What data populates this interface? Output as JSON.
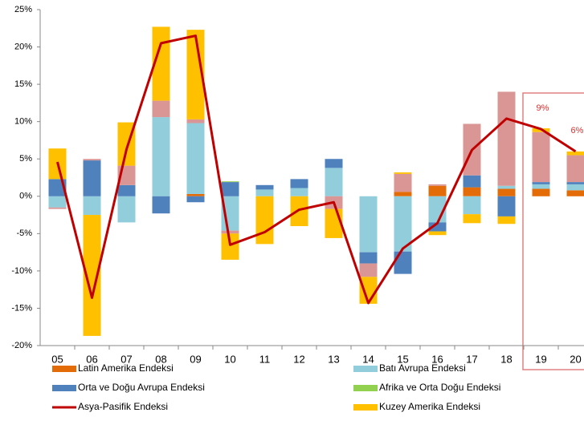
{
  "chart_data": {
    "type": "bar",
    "categories": [
      "05",
      "06",
      "07",
      "08",
      "09",
      "10",
      "11",
      "12",
      "13",
      "14",
      "15",
      "16",
      "17",
      "18",
      "19",
      "20"
    ],
    "stacked": true,
    "ylim": [
      -20,
      25
    ],
    "yticks": [
      {
        "value": -20,
        "label": "-20%"
      },
      {
        "value": -15,
        "label": "-15%"
      },
      {
        "value": -10,
        "label": "-10%"
      },
      {
        "value": -5,
        "label": "-5%"
      },
      {
        "value": 0,
        "label": "0%"
      },
      {
        "value": 5,
        "label": "5%"
      },
      {
        "value": 10,
        "label": "10%"
      },
      {
        "value": 15,
        "label": "15%"
      },
      {
        "value": 20,
        "label": "20%"
      },
      {
        "value": 25,
        "label": "25%"
      }
    ],
    "legend": "bottom",
    "series": [
      {
        "name": "Latin Amerika Endeksi",
        "color": "#e36c09",
        "values": [
          0,
          0,
          0,
          0,
          0.3,
          0,
          0,
          0,
          0,
          0,
          0.6,
          1.4,
          1.2,
          1.0,
          1.0,
          0.8
        ]
      },
      {
        "name": "Batı Avrupa Endeksi",
        "color": "#92cddc",
        "values": [
          -1.5,
          -2.5,
          -3.5,
          10.6,
          9.5,
          -4.6,
          0.9,
          1.1,
          3.8,
          -7.5,
          -7.4,
          -3.5,
          -2.4,
          0.4,
          0.6,
          0.8
        ]
      },
      {
        "name": "Orta ve Doğu Avrupa Endeksi",
        "color": "#4f81bd",
        "values": [
          2.3,
          4.8,
          1.5,
          -2.3,
          -0.8,
          1.9,
          0.6,
          1.2,
          1.2,
          -1.5,
          -3.0,
          -1.2,
          1.6,
          -2.7,
          0.3,
          0.3
        ]
      },
      {
        "name": "Afrika ve Orta Doğu Endeksi",
        "color": "#92d050",
        "values": [
          0,
          0,
          0,
          0,
          0,
          0.1,
          0,
          0,
          0,
          0,
          0,
          0,
          0,
          0,
          0,
          0
        ]
      },
      {
        "color": "#d99694",
        "values": [
          -0.2,
          0.2,
          2.6,
          2.2,
          0.5,
          -0.4,
          0,
          0,
          -1.7,
          -1.8,
          2.4,
          0.2,
          6.9,
          12.6,
          6.7,
          3.6
        ]
      },
      {
        "name": "Kuzey Amerika Endeksi",
        "color": "#ffc000",
        "values": [
          4.1,
          -16.2,
          5.8,
          9.9,
          12.0,
          -3.5,
          -6.4,
          -4.0,
          -3.9,
          -3.6,
          0.2,
          -0.5,
          -1.2,
          -1.0,
          0.5,
          0.5
        ]
      },
      {
        "name": "Asya-Pasifik Endeksi",
        "type": "line",
        "color": "#c00000",
        "values": [
          4.6,
          -13.6,
          6.3,
          20.5,
          21.5,
          -6.5,
          -4.8,
          -1.8,
          -0.8,
          -14.3,
          -7.0,
          -3.6,
          6.2,
          10.4,
          9.0,
          6.0
        ],
        "value_labels": [
          null,
          null,
          null,
          null,
          null,
          null,
          null,
          null,
          null,
          null,
          null,
          null,
          null,
          null,
          "9%",
          "6%"
        ]
      }
    ]
  }
}
